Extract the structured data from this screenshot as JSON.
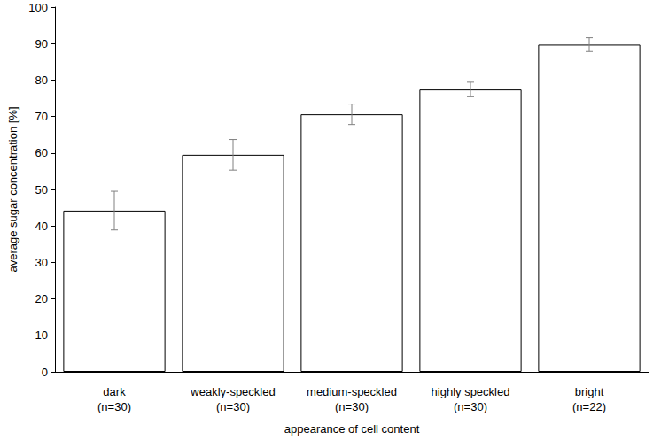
{
  "chart_data": {
    "type": "bar",
    "x_label": "appearance of cell content",
    "y_label": "average sugar concentration [%]",
    "categories": [
      "dark\n(n=30)",
      "weakly-speckled\n(n=30)",
      "medium-speckled\n(n=30)",
      "highly speckled\n(n=30)",
      "bright\n(n=22)"
    ],
    "values": [
      44.2,
      59.5,
      70.6,
      77.4,
      89.7
    ],
    "errors": [
      5.3,
      4.2,
      2.8,
      2.0,
      1.9
    ],
    "color": "#ffffff",
    "ylim": [
      0,
      100
    ],
    "yticks": [
      0,
      10,
      20,
      30,
      40,
      50,
      60,
      70,
      80,
      90,
      100
    ],
    "grid": false
  }
}
